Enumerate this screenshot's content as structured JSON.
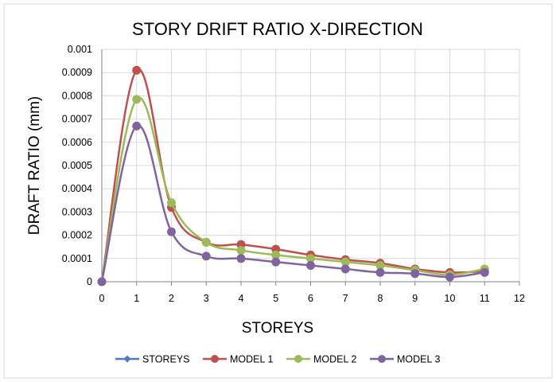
{
  "chart_data": {
    "type": "line",
    "title": "STORY DRIFT RATIO X-DIRECTION",
    "xlabel": "STOREYS",
    "ylabel": "DRAFT RATIO (mm)",
    "xlim": [
      0,
      12
    ],
    "ylim": [
      0,
      0.001
    ],
    "x_ticks": [
      "0",
      "1",
      "2",
      "3",
      "4",
      "5",
      "6",
      "7",
      "8",
      "9",
      "10",
      "11",
      "12"
    ],
    "y_ticks": [
      "0",
      "0.0001",
      "0.0002",
      "0.0003",
      "0.0004",
      "0.0005",
      "0.0006",
      "0.0007",
      "0.0008",
      "0.0009",
      "0.001"
    ],
    "grid": true,
    "smooth": true,
    "legend_position": "bottom",
    "x": [
      0,
      1,
      2,
      3,
      4,
      5,
      6,
      7,
      8,
      9,
      10,
      11
    ],
    "series": [
      {
        "name": "STOREYS",
        "color": "#4a7ebb",
        "marker": "diamond",
        "values": [
          0,
          null,
          null,
          null,
          null,
          null,
          null,
          null,
          null,
          null,
          null,
          null
        ]
      },
      {
        "name": "MODEL 1",
        "color": "#c0504d",
        "marker": "circle",
        "values": [
          0,
          0.00091,
          0.00032,
          0.00017,
          0.00016,
          0.00014,
          0.000115,
          9.5e-05,
          8e-05,
          5.5e-05,
          4e-05,
          4.5e-05
        ]
      },
      {
        "name": "MODEL 2",
        "color": "#9bbb59",
        "marker": "circle",
        "values": [
          0,
          0.000785,
          0.00034,
          0.00017,
          0.000135,
          0.000115,
          0.0001,
          8.5e-05,
          7e-05,
          5e-05,
          3e-05,
          5.5e-05
        ]
      },
      {
        "name": "MODEL 3",
        "color": "#8064a2",
        "marker": "circle",
        "values": [
          0,
          0.00067,
          0.000215,
          0.00011,
          0.0001,
          8.5e-05,
          7e-05,
          5.5e-05,
          4e-05,
          3.5e-05,
          2e-05,
          4e-05
        ]
      }
    ]
  }
}
